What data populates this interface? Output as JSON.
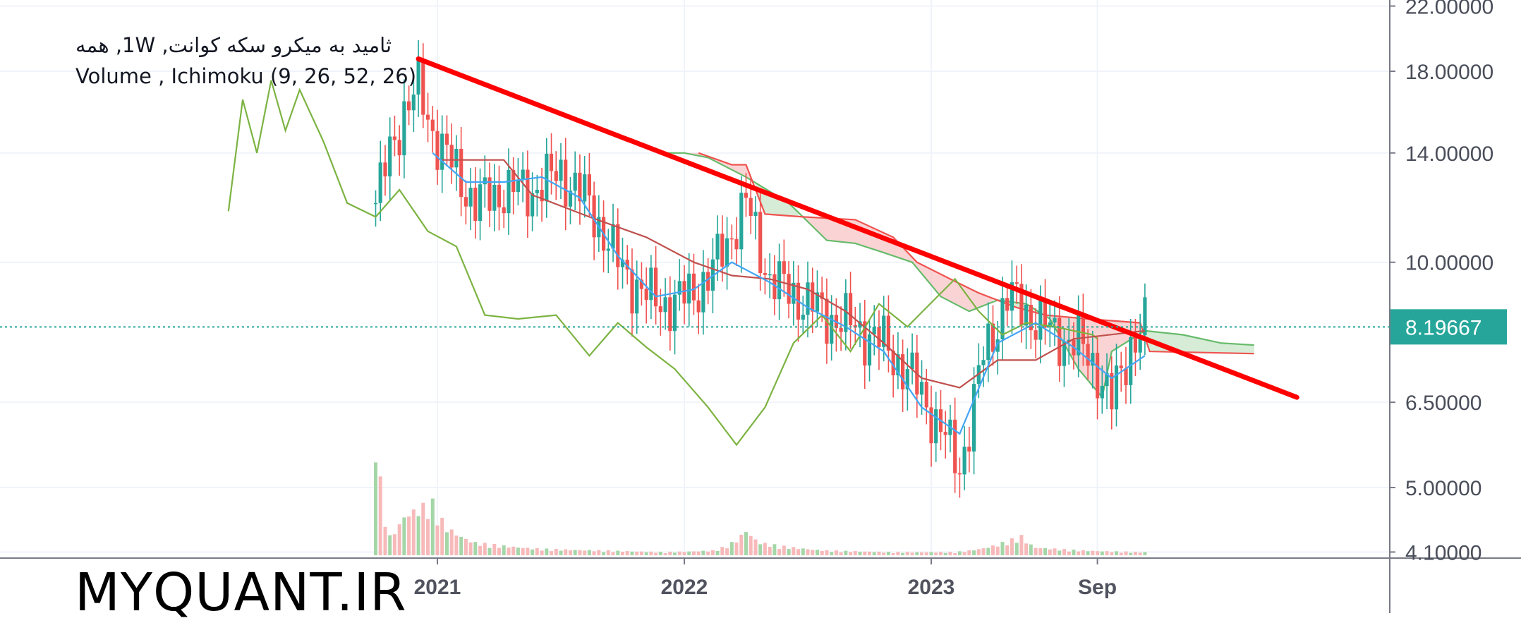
{
  "header": {
    "title": "ثامید به میکرو سکه کوانت, 1W, همه",
    "indicators": "Volume , Ichimoku (9, 26, 52, 26)"
  },
  "watermark": "MYQUANT.IR",
  "price_axis": {
    "ticks": [
      "22.00000",
      "18.00000",
      "14.00000",
      "10.00000",
      "6.50000",
      "5.00000",
      "4.10000"
    ],
    "current_price": "8.19667",
    "scale": "log"
  },
  "time_axis": {
    "ticks": [
      "2021",
      "2022",
      "2023",
      "Sep"
    ]
  },
  "colors": {
    "up": "#26a69a",
    "down": "#ef5350",
    "tenkan": "#2196f3",
    "kijun": "#b71c1c",
    "lagging_span": "#43a047",
    "cloud_bearish": "#f8c5c5",
    "cloud_bullish": "#c8e6c9",
    "trendline": "#ff0000",
    "price_label": "#26a69a"
  },
  "chart_data": {
    "type": "candlestick",
    "title": "ثامید به میکرو سکه کوانت, 1W, همه",
    "timeframe": "1W",
    "indicators": [
      "Volume",
      "Ichimoku (9, 26, 52, 26)"
    ],
    "x_ticks": [
      "2021",
      "2022",
      "2023",
      "Sep"
    ],
    "y_ticks": [
      22,
      18,
      14,
      10,
      6.5,
      5,
      4.1
    ],
    "y_scale": "log",
    "ylim": [
      4.1,
      23
    ],
    "last_price": 8.19667,
    "grid": true,
    "close_path": [
      [
        "2020-10-05",
        12.0
      ],
      [
        "2020-10-26",
        14.0
      ],
      [
        "2020-11-16",
        16.0
      ],
      [
        "2020-12-07",
        17.0
      ],
      [
        "2020-12-28",
        15.0
      ],
      [
        "2021-01-25",
        13.5
      ],
      [
        "2021-03-01",
        12.0
      ],
      [
        "2021-04-12",
        12.5
      ],
      [
        "2021-05-24",
        12.5
      ],
      [
        "2021-07-05",
        13.2
      ],
      [
        "2021-08-16",
        12.0
      ],
      [
        "2021-09-27",
        10.0
      ],
      [
        "2021-11-08",
        9.0
      ],
      [
        "2021-12-20",
        8.8
      ],
      [
        "2022-02-07",
        9.5
      ],
      [
        "2022-04-04",
        12.0
      ],
      [
        "2022-05-09",
        9.5
      ],
      [
        "2022-06-20",
        9.0
      ],
      [
        "2022-08-01",
        8.5
      ],
      [
        "2022-09-12",
        8.2
      ],
      [
        "2022-10-24",
        7.8
      ],
      [
        "2022-12-05",
        7.0
      ],
      [
        "2023-01-16",
        6.0
      ],
      [
        "2023-02-13",
        5.3
      ],
      [
        "2023-03-20",
        7.5
      ],
      [
        "2023-04-24",
        9.0
      ],
      [
        "2023-05-29",
        8.5
      ],
      [
        "2023-07-03",
        8.0
      ],
      [
        "2023-08-07",
        7.8
      ],
      [
        "2023-09-04",
        7.2
      ],
      [
        "2023-09-25",
        6.5
      ],
      [
        "2023-10-23",
        7.8
      ],
      [
        "2023-11-13",
        8.19667
      ]
    ],
    "series": [
      {
        "name": "Tenkan",
        "points": [
          [
            "2020-12-28",
            14.0
          ],
          [
            "2021-02-15",
            12.8
          ],
          [
            "2021-04-12",
            12.8
          ],
          [
            "2021-06-07",
            13.0
          ],
          [
            "2021-08-02",
            12.2
          ],
          [
            "2021-09-27",
            10.2
          ],
          [
            "2021-11-22",
            9.0
          ],
          [
            "2022-01-17",
            9.2
          ],
          [
            "2022-03-14",
            10.0
          ],
          [
            "2022-05-09",
            9.4
          ],
          [
            "2022-07-04",
            8.7
          ],
          [
            "2022-08-29",
            8.2
          ],
          [
            "2022-10-24",
            7.6
          ],
          [
            "2022-12-19",
            6.4
          ],
          [
            "2023-02-13",
            5.9
          ],
          [
            "2023-04-10",
            7.8
          ],
          [
            "2023-06-05",
            8.3
          ],
          [
            "2023-07-31",
            7.7
          ],
          [
            "2023-09-25",
            7.0
          ],
          [
            "2023-11-13",
            7.5
          ]
        ]
      },
      {
        "name": "Kijun",
        "points": [
          [
            "2021-01-11",
            13.7
          ],
          [
            "2021-04-12",
            13.7
          ],
          [
            "2021-05-24",
            12.3
          ],
          [
            "2021-08-16",
            11.5
          ],
          [
            "2021-11-08",
            10.8
          ],
          [
            "2022-01-17",
            10.0
          ],
          [
            "2022-03-14",
            9.6
          ],
          [
            "2022-05-09",
            9.5
          ],
          [
            "2022-07-04",
            9.2
          ],
          [
            "2022-08-29",
            8.6
          ],
          [
            "2022-10-24",
            7.8
          ],
          [
            "2022-12-19",
            7.0
          ],
          [
            "2023-02-13",
            6.8
          ],
          [
            "2023-04-10",
            7.4
          ],
          [
            "2023-06-05",
            7.4
          ],
          [
            "2023-07-31",
            7.9
          ],
          [
            "2023-11-13",
            8.1
          ]
        ]
      },
      {
        "name": "Lagging Span",
        "points": [
          [
            "2020-03-02",
            11.7
          ],
          [
            "2020-03-23",
            16.5
          ],
          [
            "2020-04-13",
            14.0
          ],
          [
            "2020-05-04",
            17.5
          ],
          [
            "2020-05-25",
            15.0
          ],
          [
            "2020-06-15",
            17.0
          ],
          [
            "2020-07-20",
            14.5
          ],
          [
            "2020-08-24",
            12.0
          ],
          [
            "2020-10-05",
            11.5
          ],
          [
            "2020-11-09",
            12.5
          ],
          [
            "2020-12-21",
            11.0
          ],
          [
            "2021-02-01",
            10.5
          ],
          [
            "2021-03-15",
            8.5
          ],
          [
            "2021-05-03",
            8.4
          ],
          [
            "2021-06-28",
            8.5
          ],
          [
            "2021-08-16",
            7.5
          ],
          [
            "2021-09-27",
            8.3
          ],
          [
            "2021-11-08",
            7.7
          ],
          [
            "2021-12-20",
            7.2
          ],
          [
            "2022-02-07",
            6.4
          ],
          [
            "2022-03-21",
            5.7
          ],
          [
            "2022-05-02",
            6.4
          ],
          [
            "2022-06-13",
            7.8
          ],
          [
            "2022-07-25",
            8.5
          ],
          [
            "2022-09-05",
            7.6
          ],
          [
            "2022-10-17",
            8.8
          ],
          [
            "2022-11-28",
            8.2
          ],
          [
            "2022-12-26",
            8.7
          ],
          [
            "2023-02-06",
            9.5
          ],
          [
            "2023-03-13",
            8.6
          ],
          [
            "2023-04-17",
            8.0
          ],
          [
            "2023-05-22",
            8.3
          ],
          [
            "2023-07-03",
            8.2
          ],
          [
            "2023-08-28",
            8.0
          ],
          [
            "2023-09-04",
            7.9
          ]
        ]
      },
      {
        "name": "Cloud Span A",
        "points": [
          [
            "2021-12-06",
            14.0
          ],
          [
            "2022-01-03",
            14.0
          ],
          [
            "2022-02-07",
            13.8
          ],
          [
            "2022-04-04",
            13.0
          ],
          [
            "2022-06-06",
            12.0
          ],
          [
            "2022-08-01",
            10.7
          ],
          [
            "2022-09-12",
            10.6
          ],
          [
            "2022-10-24",
            10.3
          ],
          [
            "2022-12-05",
            10.0
          ],
          [
            "2023-01-16",
            9.0
          ],
          [
            "2023-02-27",
            8.6
          ],
          [
            "2023-04-10",
            8.9
          ],
          [
            "2023-05-22",
            8.8
          ],
          [
            "2023-06-26",
            8.4
          ],
          [
            "2023-08-07",
            7.2
          ],
          [
            "2023-09-11",
            6.6
          ],
          [
            "2023-09-25",
            7.6
          ],
          [
            "2023-11-13",
            8.1
          ],
          [
            "2024-01-08",
            8.0
          ],
          [
            "2024-03-04",
            7.8
          ],
          [
            "2024-04-22",
            7.75
          ]
        ]
      },
      {
        "name": "Cloud Span B",
        "points": [
          [
            "2022-01-24",
            14.0
          ],
          [
            "2022-03-14",
            13.5
          ],
          [
            "2022-04-04",
            13.5
          ],
          [
            "2022-05-02",
            11.6
          ],
          [
            "2022-06-27",
            11.5
          ],
          [
            "2022-09-12",
            11.4
          ],
          [
            "2022-11-07",
            10.8
          ],
          [
            "2022-12-12",
            10.0
          ],
          [
            "2023-01-30",
            9.5
          ],
          [
            "2023-03-13",
            9.1
          ],
          [
            "2023-05-08",
            8.7
          ],
          [
            "2023-06-19",
            8.5
          ],
          [
            "2023-08-21",
            8.4
          ],
          [
            "2023-11-06",
            8.3
          ],
          [
            "2023-11-20",
            7.6
          ],
          [
            "2024-04-22",
            7.55
          ]
        ]
      },
      {
        "name": "Trendline",
        "points": [
          [
            "2020-12-07",
            18.7
          ],
          [
            "2024-06-24",
            6.6
          ]
        ]
      }
    ],
    "volume": [
      [
        "2020-10-05",
        0.9
      ],
      [
        "2020-10-26",
        0.12
      ],
      [
        "2020-11-16",
        0.25
      ],
      [
        "2020-12-07",
        0.3
      ],
      [
        "2020-12-28",
        0.33
      ],
      [
        "2021-01-18",
        0.18
      ],
      [
        "2021-03-01",
        0.08
      ],
      [
        "2021-06-07",
        0.04
      ],
      [
        "2021-09-06",
        0.03
      ],
      [
        "2021-12-06",
        0.02
      ],
      [
        "2022-02-14",
        0.03
      ],
      [
        "2022-04-04",
        0.16
      ],
      [
        "2022-04-25",
        0.08
      ],
      [
        "2022-08-01",
        0.03
      ],
      [
        "2022-11-07",
        0.02
      ],
      [
        "2023-02-06",
        0.02
      ],
      [
        "2023-04-24",
        0.09
      ],
      [
        "2023-05-15",
        0.12
      ],
      [
        "2023-06-05",
        0.05
      ],
      [
        "2023-08-14",
        0.03
      ],
      [
        "2023-11-06",
        0.02
      ]
    ]
  }
}
